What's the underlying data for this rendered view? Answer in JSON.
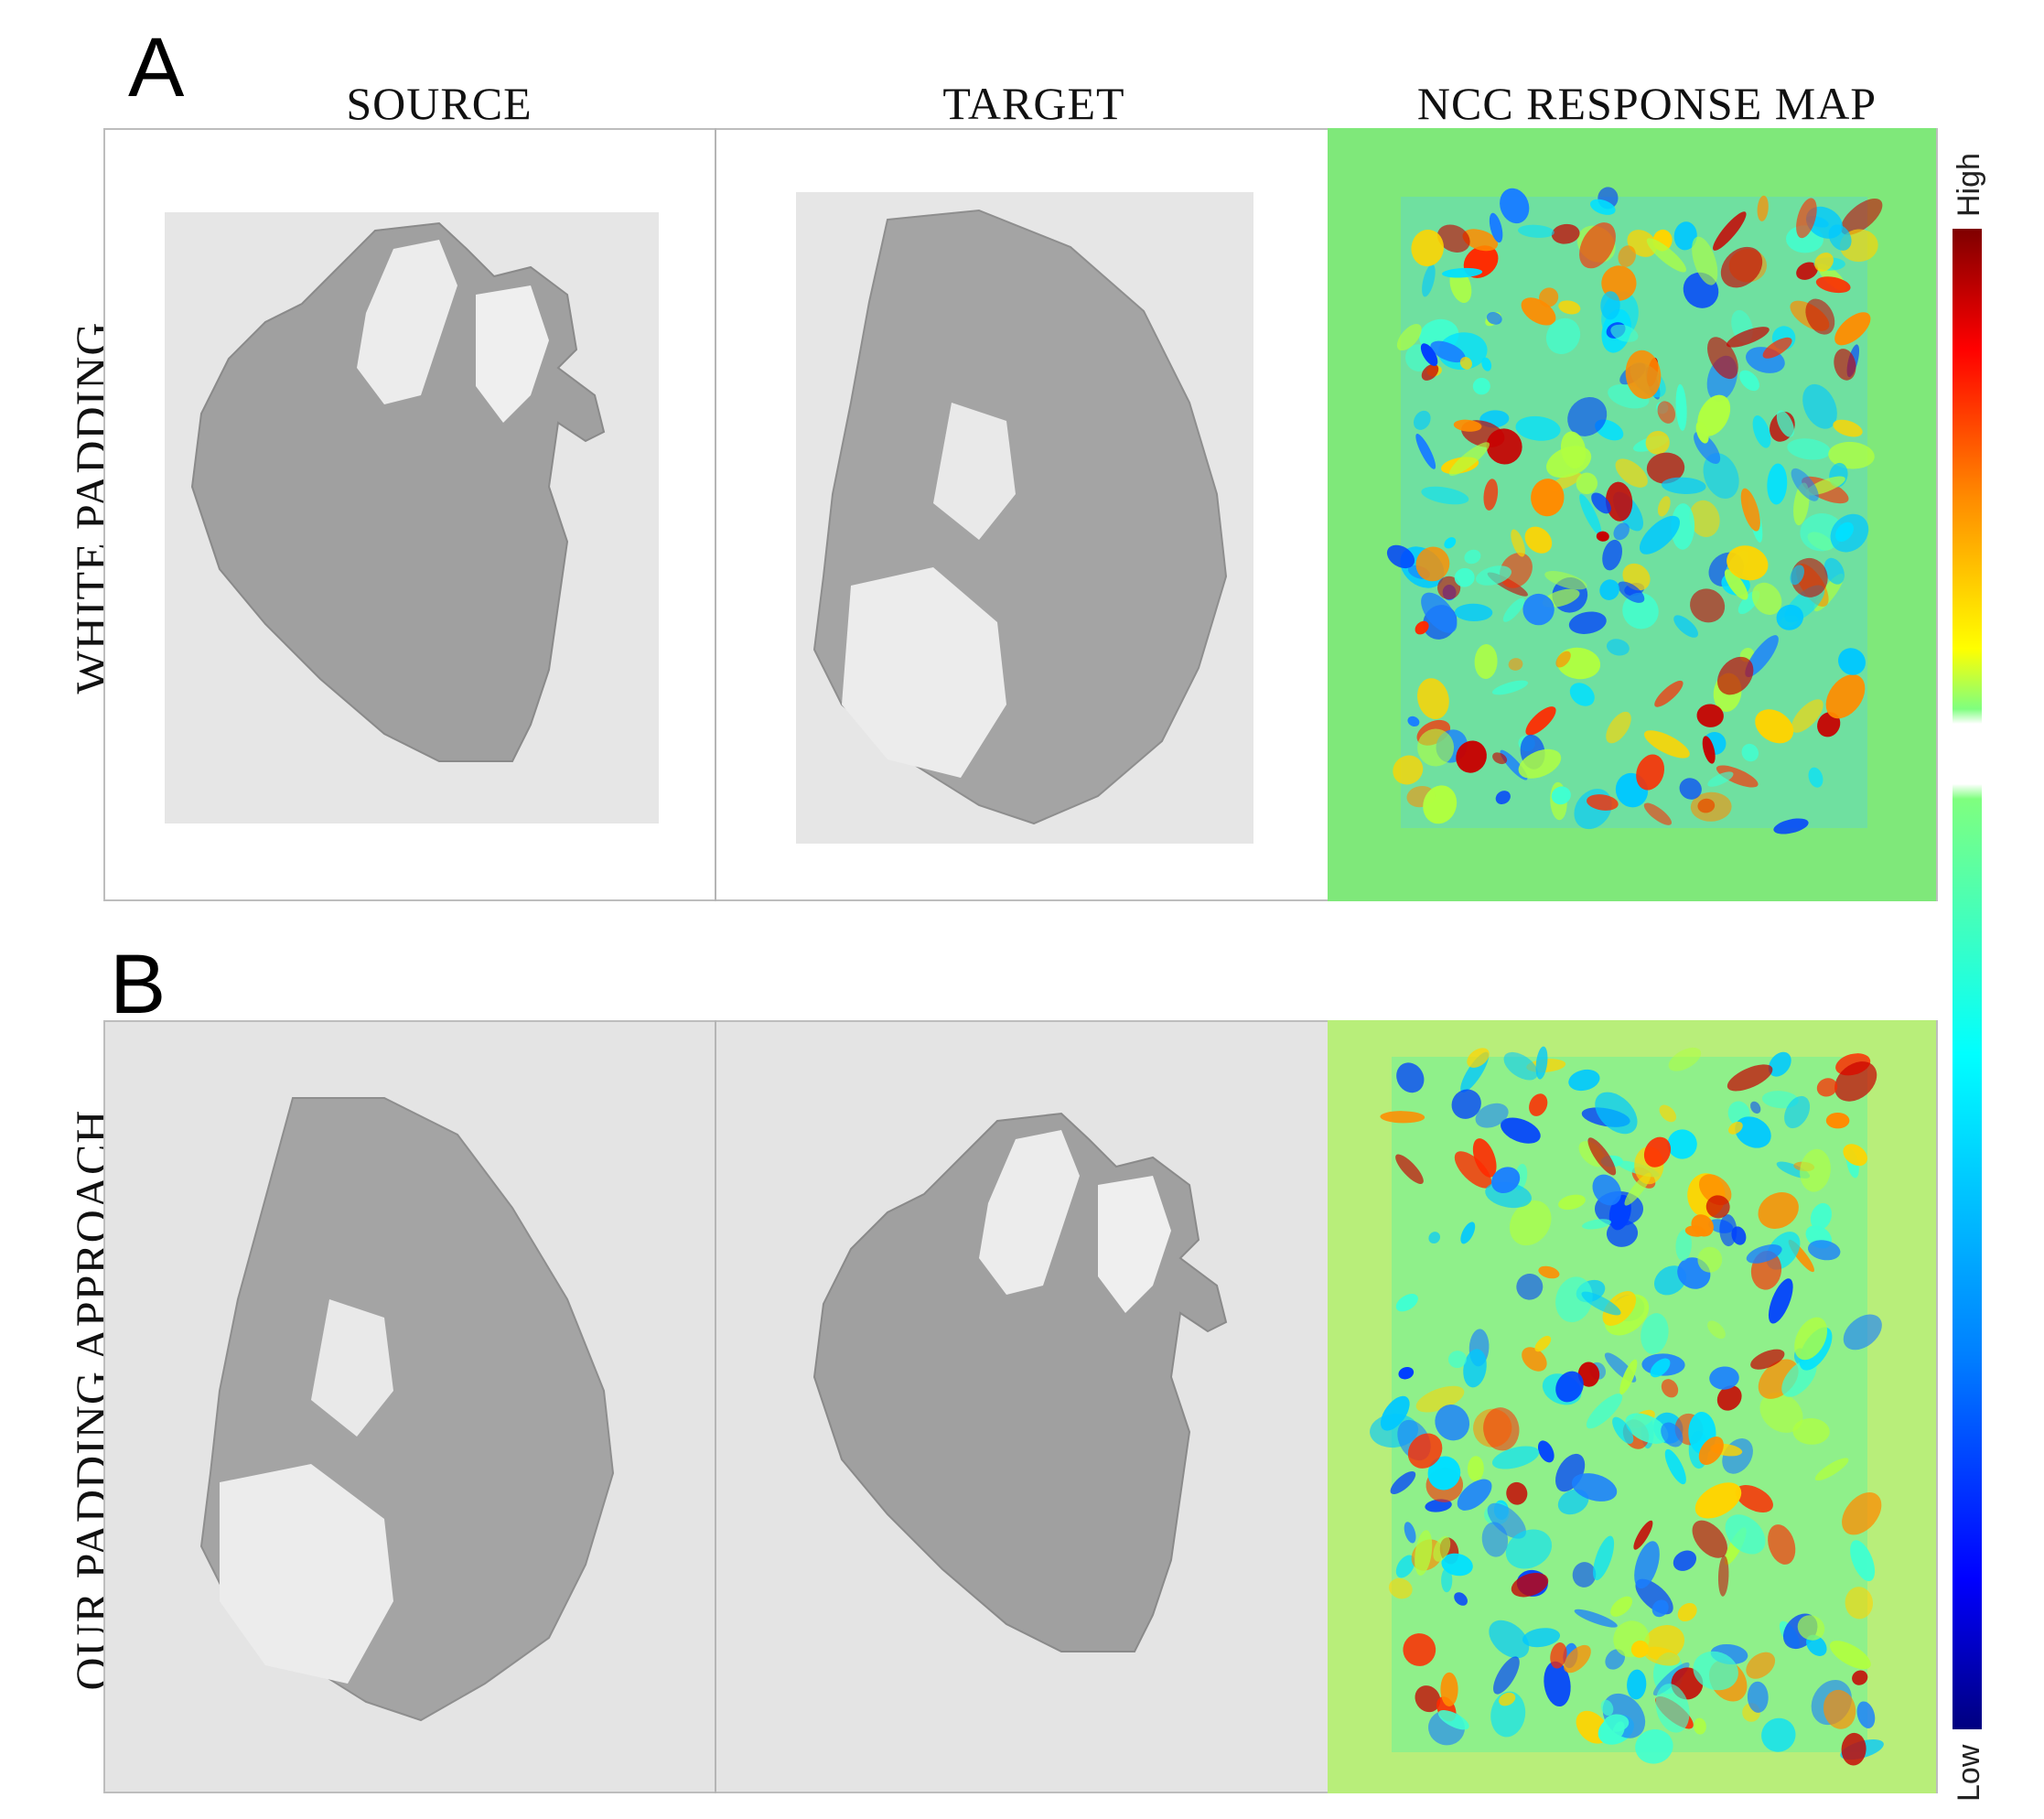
{
  "panels": [
    {
      "letter": "A",
      "row_label": "WHITE PADDING"
    },
    {
      "letter": "B",
      "row_label": "OUR PADDING APPROACH"
    }
  ],
  "columns": {
    "source": "SOURCE",
    "target": "TARGET",
    "ncc": "NCC RESPONSE MAP"
  },
  "colorbar": {
    "high_label": "High",
    "low_label": "Low",
    "colormap": "jet",
    "colors": [
      "#7f0000",
      "#ff0000",
      "#ff8c00",
      "#ffff00",
      "#7fff7f",
      "#00ffff",
      "#0080ff",
      "#0000ff",
      "#00007f"
    ]
  },
  "colors": {
    "tissue": "#9c9c9c",
    "white_padding_background": "#ffffff",
    "gray_padding_background": "#e4e4e4",
    "ncc_background": "#7fe87a"
  }
}
